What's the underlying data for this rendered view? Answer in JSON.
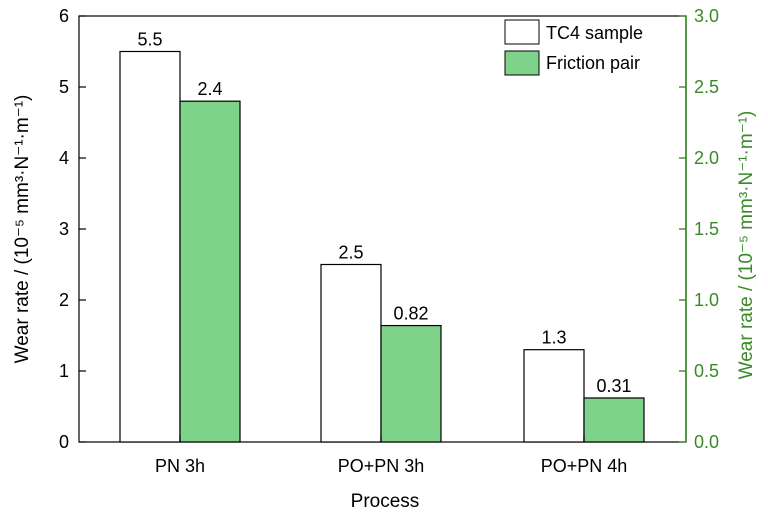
{
  "chart_data": {
    "type": "bar",
    "xlabel": "Process",
    "ylabel_left": "Wear rate / (10⁻⁵ mm³·N⁻¹·m⁻¹)",
    "ylabel_right": "Wear rate / (10⁻⁵ mm³·N⁻¹·m⁻¹)",
    "categories": [
      "PN 3h",
      "PO+PN 3h",
      "PO+PN 4h"
    ],
    "ylim_left": [
      0,
      6
    ],
    "ylim_right": [
      0,
      3.0
    ],
    "yticks_left": [
      "0",
      "1",
      "2",
      "3",
      "4",
      "5",
      "6"
    ],
    "yticks_right": [
      "0.0",
      "0.5",
      "1.0",
      "1.5",
      "2.0",
      "2.5",
      "3.0"
    ],
    "grid": false,
    "legend_position": "top-right",
    "series": [
      {
        "name": "TC4 sample",
        "axis": "left",
        "color": "#ffffff",
        "values": [
          5.5,
          2.5,
          1.3
        ],
        "labels": [
          "5.5",
          "2.5",
          "1.3"
        ]
      },
      {
        "name": "Friction pair",
        "axis": "right",
        "color": "#7fd28a",
        "values": [
          2.4,
          0.82,
          0.31
        ],
        "labels": [
          "2.4",
          "0.82",
          "0.31"
        ]
      }
    ],
    "right_axis_color": "#3a8a2a"
  }
}
